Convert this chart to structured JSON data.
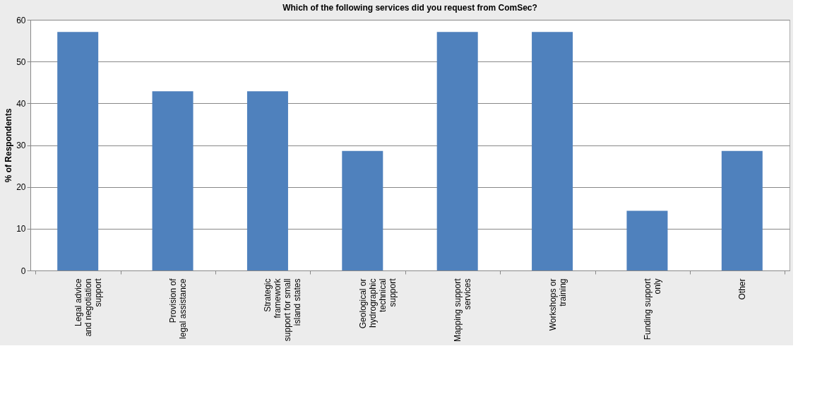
{
  "chart_data": {
    "type": "bar",
    "title": "Which of the following services did you request from ComSec?",
    "ylabel": "% of Respondents",
    "categories": [
      "Legal advice\nand negotiation\nsupport",
      "Provision of\nlegal assistance",
      "Strategic\nframework\nsupport for small\nisland states",
      "Geological or\nhydrographic\ntechnical\nsupport",
      "Mapping support\nservices",
      "Workshops or\ntraining",
      "Funding support\nonly",
      "Other"
    ],
    "values": [
      57.1,
      42.9,
      42.9,
      28.6,
      57.1,
      57.1,
      14.3,
      28.6
    ],
    "color": "#4f81bd",
    "ylim": [
      0,
      60
    ],
    "yticks": [
      0,
      10,
      20,
      30,
      40,
      50,
      60
    ],
    "grid": "y"
  }
}
